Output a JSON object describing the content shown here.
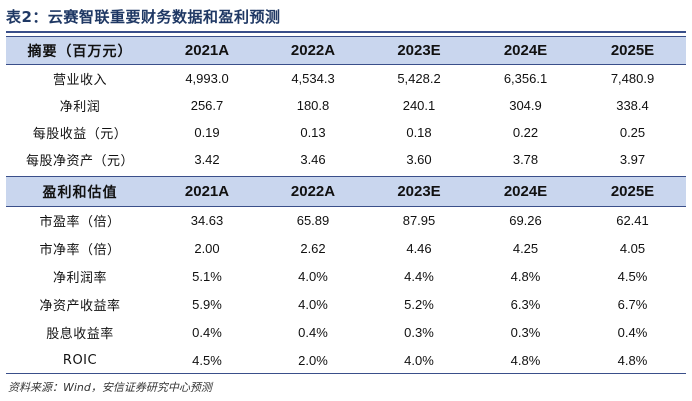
{
  "title": "表2：云赛智联重要财务数据和盈利预测",
  "section1": {
    "header": [
      "摘要（百万元）",
      "2021A",
      "2022A",
      "2023E",
      "2024E",
      "2025E"
    ],
    "rows": [
      [
        "营业收入",
        "4,993.0",
        "4,534.3",
        "5,428.2",
        "6,356.1",
        "7,480.9"
      ],
      [
        "净利润",
        "256.7",
        "180.8",
        "240.1",
        "304.9",
        "338.4"
      ],
      [
        "每股收益（元）",
        "0.19",
        "0.13",
        "0.18",
        "0.22",
        "0.25"
      ],
      [
        "每股净资产（元）",
        "3.42",
        "3.46",
        "3.60",
        "3.78",
        "3.97"
      ]
    ]
  },
  "section2": {
    "header": [
      "盈利和估值",
      "2021A",
      "2022A",
      "2023E",
      "2024E",
      "2025E"
    ],
    "rows": [
      [
        "市盈率（倍）",
        "34.63",
        "65.89",
        "87.95",
        "69.26",
        "62.41"
      ],
      [
        "市净率（倍）",
        "2.00",
        "2.62",
        "4.46",
        "4.25",
        "4.05"
      ],
      [
        "净利润率",
        "5.1%",
        "4.0%",
        "4.4%",
        "4.8%",
        "4.5%"
      ],
      [
        "净资产收益率",
        "5.9%",
        "4.0%",
        "5.2%",
        "6.3%",
        "6.7%"
      ],
      [
        "股息收益率",
        "0.4%",
        "0.4%",
        "0.3%",
        "0.3%",
        "0.4%"
      ],
      [
        "ROIC",
        "4.5%",
        "2.0%",
        "4.0%",
        "4.8%",
        "4.8%"
      ]
    ]
  },
  "source": "资料来源：Wind，安信证券研究中心预测",
  "colors": {
    "header_bg": "#c9d6ee",
    "rule": "#3a4f8a",
    "title": "#1f3864"
  }
}
